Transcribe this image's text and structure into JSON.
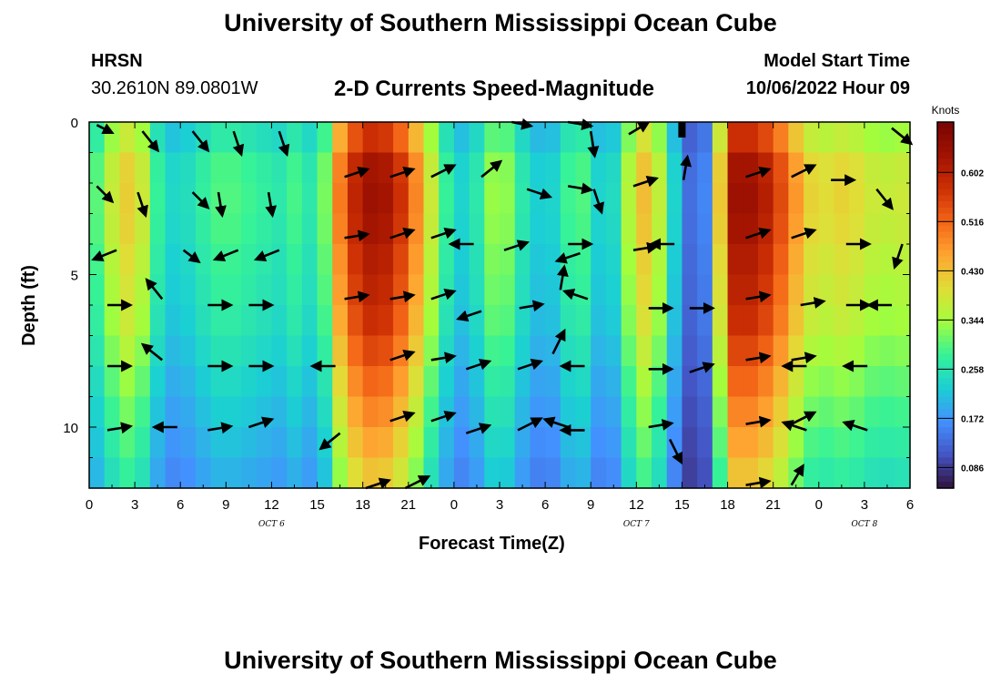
{
  "header": {
    "title": "University of Southern Mississippi Ocean Cube",
    "station": "HRSN",
    "coords": "30.2610N  89.0801W",
    "chart_title": "2-D Currents Speed-Magnitude",
    "model_start_label": "Model Start Time",
    "model_start_value": "10/06/2022 Hour 09"
  },
  "footer": {
    "title": "University of Southern Mississippi Ocean Cube"
  },
  "chart_data": {
    "type": "heatmap",
    "title": "2-D Currents Speed-Magnitude",
    "xlabel": "Forecast Time(Z)",
    "ylabel": "Depth (ft)",
    "x_ticks": [
      "0",
      "3",
      "6",
      "9",
      "12",
      "15",
      "18",
      "21",
      "0",
      "3",
      "6",
      "9",
      "12",
      "15",
      "18",
      "21",
      "0",
      "3",
      "6"
    ],
    "x_tick_hours": [
      0,
      3,
      6,
      9,
      12,
      15,
      18,
      21,
      24,
      27,
      30,
      33,
      36,
      39,
      42,
      45,
      48,
      51,
      54
    ],
    "date_labels": [
      {
        "text": "OCT 6",
        "hour": 12
      },
      {
        "text": "OCT 7",
        "hour": 36
      },
      {
        "text": "OCT 8",
        "hour": 51
      }
    ],
    "xlim": [
      0,
      54
    ],
    "y_ticks": [
      "0",
      "5",
      "10"
    ],
    "y_tick_values": [
      0,
      5,
      10
    ],
    "ylim": [
      0,
      12
    ],
    "y_inverted": true,
    "colorbar": {
      "label": "Knots",
      "ticks": [
        "0.086",
        "0.172",
        "0.258",
        "0.344",
        "0.430",
        "0.516",
        "0.602"
      ],
      "tick_values": [
        0.086,
        0.172,
        0.258,
        0.344,
        0.43,
        0.516,
        0.602
      ],
      "range": [
        0.05,
        0.69
      ],
      "colors": [
        "#30123b",
        "#4454c4",
        "#4391fe",
        "#1bcfd4",
        "#36f297",
        "#a3fd3d",
        "#e1dd37",
        "#fea531",
        "#f46617",
        "#cc2f04",
        "#a01201",
        "#7a0403"
      ]
    },
    "speed_grid": {
      "hours": [
        0,
        1,
        2,
        3,
        4,
        5,
        6,
        7,
        8,
        9,
        10,
        11,
        12,
        13,
        14,
        15,
        16,
        17,
        18,
        19,
        20,
        21,
        22,
        23,
        24,
        25,
        26,
        27,
        28,
        29,
        30,
        31,
        32,
        33,
        34,
        35,
        36,
        37,
        38,
        39,
        40,
        41,
        42,
        43,
        44,
        45,
        46,
        47,
        48,
        49,
        50,
        51,
        52,
        53,
        54
      ],
      "depths": [
        0,
        1,
        2,
        3,
        4,
        5,
        6,
        7,
        8,
        9,
        10,
        11,
        12
      ],
      "hour_profile": [
        0.24,
        0.32,
        0.37,
        0.4,
        0.3,
        0.22,
        0.22,
        0.24,
        0.27,
        0.28,
        0.27,
        0.26,
        0.25,
        0.24,
        0.3,
        0.19,
        0.4,
        0.52,
        0.58,
        0.6,
        0.56,
        0.5,
        0.4,
        0.3,
        0.22,
        0.21,
        0.28,
        0.34,
        0.27,
        0.22,
        0.2,
        0.23,
        0.3,
        0.25,
        0.18,
        0.27,
        0.39,
        0.41,
        0.27,
        0.16,
        0.09,
        0.2,
        0.58,
        0.6,
        0.58,
        0.54,
        0.47,
        0.4,
        0.36,
        0.38,
        0.38,
        0.36,
        0.34,
        0.35,
        0.35
      ],
      "depth_profile": [
        0.9,
        1.05,
        1.08,
        1.08,
        1.05,
        1.02,
        1.0,
        0.96,
        0.9,
        0.85,
        0.8,
        0.75,
        0.7
      ]
    },
    "vectors": [
      {
        "h": 0.5,
        "d": 0.1,
        "u": 0.2,
        "v": -0.1
      },
      {
        "h": 3.5,
        "d": 0.3,
        "u": 0.2,
        "v": -0.25
      },
      {
        "h": 6.8,
        "d": 0.3,
        "u": 0.2,
        "v": -0.25
      },
      {
        "h": 9.5,
        "d": 0.3,
        "u": 0.1,
        "v": -0.3
      },
      {
        "h": 12.5,
        "d": 0.3,
        "u": 0.1,
        "v": -0.3
      },
      {
        "h": 27.8,
        "d": 0.0,
        "u": 0.25,
        "v": -0.05
      },
      {
        "h": 31.5,
        "d": 0.0,
        "u": 0.3,
        "v": -0.05
      },
      {
        "h": 33,
        "d": 0.3,
        "u": 0.05,
        "v": -0.32
      },
      {
        "h": 35.5,
        "d": 0.4,
        "u": 0.25,
        "v": 0.15
      },
      {
        "h": 52.8,
        "d": 0.2,
        "u": 0.25,
        "v": -0.2
      },
      {
        "h": 0.5,
        "d": 2.1,
        "u": 0.2,
        "v": -0.2
      },
      {
        "h": 3.2,
        "d": 2.3,
        "u": 0.1,
        "v": -0.3
      },
      {
        "h": 6.8,
        "d": 2.3,
        "u": 0.2,
        "v": -0.2
      },
      {
        "h": 8.5,
        "d": 2.3,
        "u": 0.05,
        "v": -0.3
      },
      {
        "h": 11.8,
        "d": 2.3,
        "u": 0.05,
        "v": -0.3
      },
      {
        "h": 16.8,
        "d": 1.8,
        "u": 0.3,
        "v": 0.1
      },
      {
        "h": 19.8,
        "d": 1.8,
        "u": 0.3,
        "v": 0.1
      },
      {
        "h": 22.5,
        "d": 1.8,
        "u": 0.3,
        "v": 0.15
      },
      {
        "h": 25.8,
        "d": 1.8,
        "u": 0.25,
        "v": 0.2
      },
      {
        "h": 28.8,
        "d": 2.2,
        "u": 0.3,
        "v": -0.1
      },
      {
        "h": 31.5,
        "d": 2.1,
        "u": 0.3,
        "v": -0.05
      },
      {
        "h": 33.2,
        "d": 2.2,
        "u": 0.1,
        "v": -0.3
      },
      {
        "h": 35.8,
        "d": 2.1,
        "u": 0.3,
        "v": 0.1
      },
      {
        "h": 39.1,
        "d": 1.9,
        "u": 0.05,
        "v": 0.3
      },
      {
        "h": 43.2,
        "d": 1.8,
        "u": 0.3,
        "v": 0.1
      },
      {
        "h": 46.2,
        "d": 1.8,
        "u": 0.3,
        "v": 0.15
      },
      {
        "h": 48.8,
        "d": 1.9,
        "u": 0.3,
        "v": 0.0
      },
      {
        "h": 51.8,
        "d": 2.2,
        "u": 0.2,
        "v": -0.25
      },
      {
        "h": 1.8,
        "d": 4.2,
        "u": -0.3,
        "v": -0.12
      },
      {
        "h": 6.2,
        "d": 4.2,
        "u": 0.2,
        "v": -0.15
      },
      {
        "h": 9.8,
        "d": 4.2,
        "u": -0.3,
        "v": -0.12
      },
      {
        "h": 12.5,
        "d": 4.2,
        "u": -0.3,
        "v": -0.12
      },
      {
        "h": 16.8,
        "d": 3.8,
        "u": 0.3,
        "v": 0.05
      },
      {
        "h": 19.8,
        "d": 3.8,
        "u": 0.3,
        "v": 0.1
      },
      {
        "h": 22.5,
        "d": 3.8,
        "u": 0.3,
        "v": 0.1
      },
      {
        "h": 25.3,
        "d": 4.0,
        "u": -0.3,
        "v": 0.0
      },
      {
        "h": 27.3,
        "d": 4.2,
        "u": 0.3,
        "v": 0.1
      },
      {
        "h": 31.5,
        "d": 4.0,
        "u": 0.3,
        "v": 0.0
      },
      {
        "h": 32.3,
        "d": 4.3,
        "u": -0.3,
        "v": -0.1
      },
      {
        "h": 35.8,
        "d": 4.2,
        "u": 0.3,
        "v": 0.05
      },
      {
        "h": 38.5,
        "d": 4.0,
        "u": -0.3,
        "v": 0.0
      },
      {
        "h": 43.2,
        "d": 3.8,
        "u": 0.3,
        "v": 0.1
      },
      {
        "h": 46.2,
        "d": 3.8,
        "u": 0.3,
        "v": 0.1
      },
      {
        "h": 49.8,
        "d": 4.0,
        "u": 0.3,
        "v": 0.0
      },
      {
        "h": 53.5,
        "d": 4.0,
        "u": -0.1,
        "v": -0.3
      },
      {
        "h": 1.2,
        "d": 6.0,
        "u": 0.3,
        "v": 0.0
      },
      {
        "h": 4.8,
        "d": 5.8,
        "u": -0.2,
        "v": 0.25
      },
      {
        "h": 7.8,
        "d": 6.0,
        "u": 0.3,
        "v": 0.0
      },
      {
        "h": 10.5,
        "d": 6.0,
        "u": 0.3,
        "v": 0.0
      },
      {
        "h": 16.8,
        "d": 5.8,
        "u": 0.3,
        "v": 0.05
      },
      {
        "h": 19.8,
        "d": 5.8,
        "u": 0.3,
        "v": 0.05
      },
      {
        "h": 22.5,
        "d": 5.8,
        "u": 0.3,
        "v": 0.1
      },
      {
        "h": 25.8,
        "d": 6.2,
        "u": -0.3,
        "v": -0.1
      },
      {
        "h": 28.3,
        "d": 6.1,
        "u": 0.3,
        "v": 0.05
      },
      {
        "h": 31,
        "d": 5.5,
        "u": 0.05,
        "v": 0.3
      },
      {
        "h": 32.8,
        "d": 5.8,
        "u": -0.3,
        "v": 0.1
      },
      {
        "h": 36.8,
        "d": 6.1,
        "u": 0.3,
        "v": 0.0
      },
      {
        "h": 39.5,
        "d": 6.1,
        "u": 0.3,
        "v": 0.0
      },
      {
        "h": 43.2,
        "d": 5.8,
        "u": 0.3,
        "v": 0.05
      },
      {
        "h": 46.8,
        "d": 6.0,
        "u": 0.3,
        "v": 0.05
      },
      {
        "h": 49.8,
        "d": 6.0,
        "u": 0.3,
        "v": 0.0
      },
      {
        "h": 52.8,
        "d": 6.0,
        "u": -0.3,
        "v": 0.0
      },
      {
        "h": 1.2,
        "d": 8.0,
        "u": 0.3,
        "v": 0.0
      },
      {
        "h": 4.8,
        "d": 7.8,
        "u": -0.25,
        "v": 0.2
      },
      {
        "h": 7.8,
        "d": 8.0,
        "u": 0.3,
        "v": 0.0
      },
      {
        "h": 10.5,
        "d": 8.0,
        "u": 0.3,
        "v": 0.0
      },
      {
        "h": 16.2,
        "d": 8.0,
        "u": -0.3,
        "v": 0.0
      },
      {
        "h": 19.8,
        "d": 7.8,
        "u": 0.3,
        "v": 0.1
      },
      {
        "h": 22.5,
        "d": 7.8,
        "u": 0.3,
        "v": 0.05
      },
      {
        "h": 24.8,
        "d": 8.1,
        "u": 0.3,
        "v": 0.1
      },
      {
        "h": 28.2,
        "d": 8.1,
        "u": 0.3,
        "v": 0.1
      },
      {
        "h": 30.5,
        "d": 7.6,
        "u": 0.15,
        "v": 0.3
      },
      {
        "h": 32.6,
        "d": 8.0,
        "u": -0.3,
        "v": 0.0
      },
      {
        "h": 36.8,
        "d": 8.1,
        "u": 0.3,
        "v": 0.0
      },
      {
        "h": 39.5,
        "d": 8.2,
        "u": 0.3,
        "v": 0.1
      },
      {
        "h": 43.2,
        "d": 7.8,
        "u": 0.3,
        "v": 0.05
      },
      {
        "h": 46.2,
        "d": 7.8,
        "u": 0.3,
        "v": 0.05
      },
      {
        "h": 47.2,
        "d": 8.0,
        "u": -0.3,
        "v": 0.0
      },
      {
        "h": 51.2,
        "d": 8.0,
        "u": -0.3,
        "v": 0.0
      },
      {
        "h": 1.2,
        "d": 10.1,
        "u": 0.3,
        "v": 0.05
      },
      {
        "h": 5.8,
        "d": 10.0,
        "u": -0.3,
        "v": 0.0
      },
      {
        "h": 7.8,
        "d": 10.1,
        "u": 0.3,
        "v": 0.05
      },
      {
        "h": 10.5,
        "d": 10.0,
        "u": 0.3,
        "v": 0.1
      },
      {
        "h": 16.5,
        "d": 10.2,
        "u": -0.25,
        "v": -0.2
      },
      {
        "h": 19.8,
        "d": 9.8,
        "u": 0.3,
        "v": 0.1
      },
      {
        "h": 22.5,
        "d": 9.8,
        "u": 0.3,
        "v": 0.1
      },
      {
        "h": 24.8,
        "d": 10.2,
        "u": 0.3,
        "v": 0.1
      },
      {
        "h": 28.2,
        "d": 10.1,
        "u": 0.3,
        "v": 0.15
      },
      {
        "h": 31.5,
        "d": 10.0,
        "u": -0.3,
        "v": 0.1
      },
      {
        "h": 32.6,
        "d": 10.1,
        "u": -0.3,
        "v": 0.0
      },
      {
        "h": 36.8,
        "d": 10.0,
        "u": 0.3,
        "v": 0.05
      },
      {
        "h": 38.2,
        "d": 10.4,
        "u": 0.15,
        "v": -0.3
      },
      {
        "h": 43.2,
        "d": 9.9,
        "u": 0.3,
        "v": 0.05
      },
      {
        "h": 46.2,
        "d": 9.9,
        "u": 0.3,
        "v": 0.15
      },
      {
        "h": 47.2,
        "d": 10.1,
        "u": -0.3,
        "v": 0.1
      },
      {
        "h": 51.2,
        "d": 10.1,
        "u": -0.3,
        "v": 0.1
      },
      {
        "h": 18.2,
        "d": 12.0,
        "u": 0.3,
        "v": 0.1
      },
      {
        "h": 20.8,
        "d": 12.0,
        "u": 0.3,
        "v": 0.15
      },
      {
        "h": 43.2,
        "d": 11.9,
        "u": 0.3,
        "v": 0.05
      },
      {
        "h": 46.2,
        "d": 11.9,
        "u": 0.15,
        "v": 0.25
      }
    ],
    "marker": {
      "hour": 39,
      "depth": 0.2
    }
  }
}
